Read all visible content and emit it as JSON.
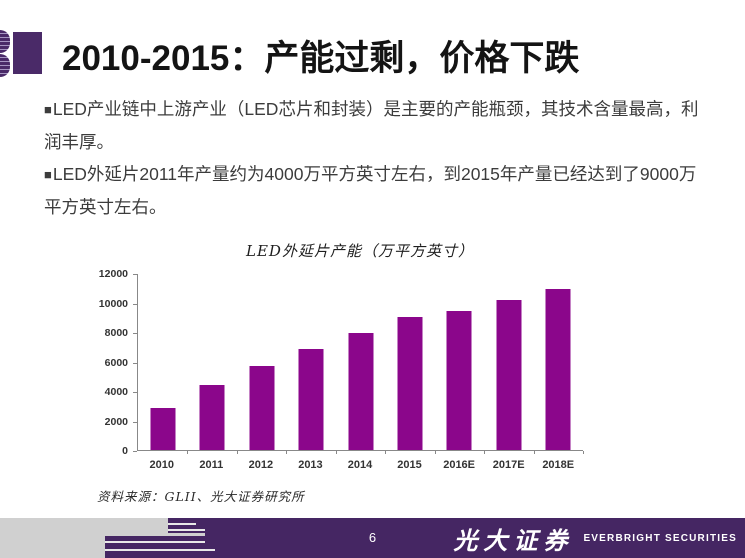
{
  "slide": {
    "title": "2010-2015：产能过剩，价格下跌",
    "bullet_marker": "■",
    "bullets": [
      "LED产业链中上游产业（LED芯片和封装）是主要的产能瓶颈，其技术含量最高，利润丰厚。",
      "LED外延片2011年产量约为4000万平方英寸左右，到2015年产量已经达到了9000万平方英寸左右。"
    ],
    "source_note": "资料来源：GLII、光大证券研究所",
    "page_number": "6",
    "footer_brand_cn": "光大证券",
    "footer_brand_en": "EVERBRIGHT SECURITIES"
  },
  "chart_data": {
    "type": "bar",
    "title": "LED外延片产能（万平方英寸）",
    "categories": [
      "2010",
      "2011",
      "2012",
      "2013",
      "2014",
      "2015",
      "2016E",
      "2017E",
      "2018E"
    ],
    "values": [
      2850,
      4400,
      5700,
      6900,
      7950,
      9100,
      9450,
      10250,
      11000
    ],
    "xlabel": "",
    "ylabel": "",
    "ylim": [
      0,
      12000
    ],
    "yticks": [
      0,
      2000,
      4000,
      6000,
      8000,
      10000,
      12000
    ],
    "grid": false,
    "legend": "none",
    "bar_color": "#8B068B"
  },
  "colors": {
    "bar_purple": "#8B068B",
    "footer_purple": "#452663",
    "accent_square": "#4A2A68",
    "footer_gray": "#D0D0D0",
    "title_text": "#141414",
    "body_text": "#3c3c3c"
  }
}
